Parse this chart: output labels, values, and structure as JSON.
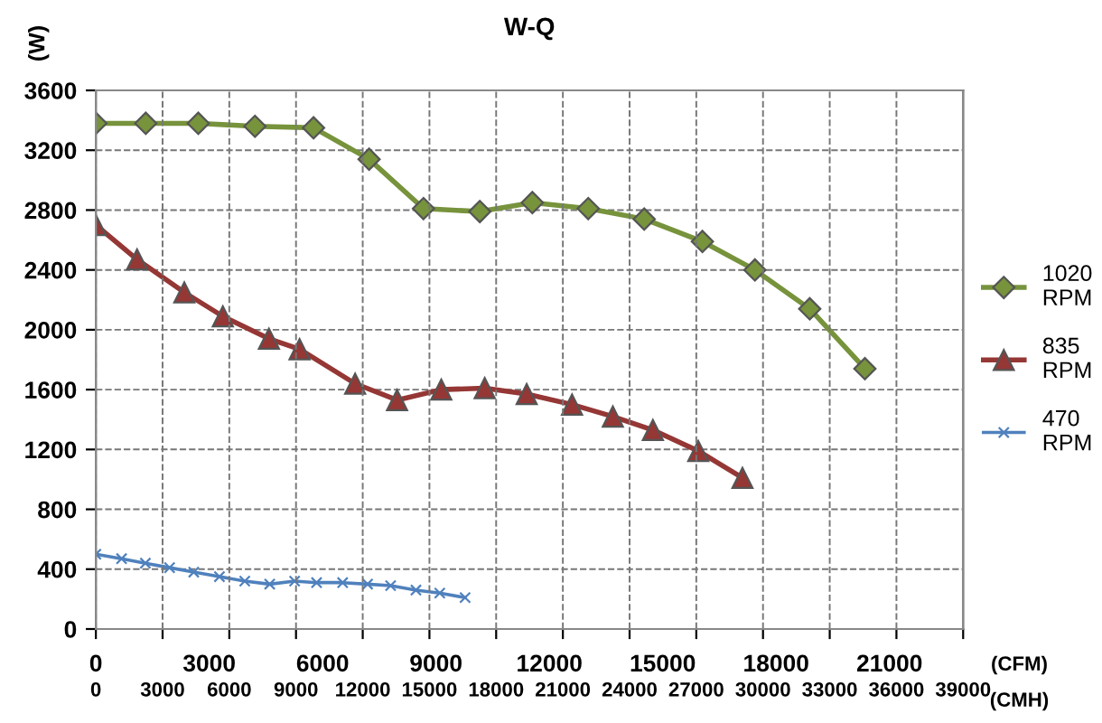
{
  "chart_data": {
    "type": "line",
    "title": "W-Q",
    "ylabel": "(W)",
    "xlabel": "(CFM)",
    "x2label": "(CMH)",
    "xlim": [
      0,
      22950
    ],
    "xticks": [
      0,
      3000,
      6000,
      9000,
      12000,
      15000,
      18000,
      21000
    ],
    "x2lim": [
      0,
      39000
    ],
    "x2ticks": [
      0,
      3000,
      6000,
      9000,
      12000,
      15000,
      18000,
      21000,
      24000,
      27000,
      30000,
      33000,
      36000,
      39000
    ],
    "ylim": [
      0,
      3600
    ],
    "yticks": [
      0,
      400,
      800,
      1200,
      1600,
      2000,
      2400,
      2800,
      3200,
      3600
    ],
    "grid": true,
    "legend": "right",
    "line_style": "solid",
    "series": [
      {
        "name": "1020\nRPM",
        "color": "#77933c",
        "marker": "diamond",
        "x": [
          0,
          1320,
          2710,
          4210,
          5760,
          7230,
          8670,
          10160,
          11550,
          13030,
          14510,
          16050,
          17440,
          18890,
          20350
        ],
        "values": [
          3380,
          3380,
          3380,
          3360,
          3350,
          3140,
          2810,
          2790,
          2850,
          2810,
          2740,
          2590,
          2400,
          2140,
          1740
        ]
      },
      {
        "name": "835\nRPM",
        "color": "#953735",
        "marker": "triangle",
        "x": [
          0,
          1090,
          2340,
          3360,
          4580,
          5390,
          6860,
          7970,
          9140,
          10290,
          11400,
          12600,
          13680,
          14740,
          15940,
          17110
        ],
        "values": [
          2700,
          2470,
          2250,
          2090,
          1940,
          1870,
          1640,
          1530,
          1600,
          1610,
          1570,
          1500,
          1420,
          1330,
          1190,
          1010
        ]
      },
      {
        "name": "470\nRPM",
        "color": "#4f81bd",
        "marker": "cross",
        "x": [
          0,
          680,
          1310,
          1950,
          2590,
          3270,
          3940,
          4600,
          5260,
          5840,
          6530,
          7190,
          7800,
          8470,
          9100,
          9770
        ],
        "values": [
          500,
          470,
          440,
          410,
          380,
          350,
          320,
          300,
          320,
          310,
          310,
          300,
          290,
          260,
          240,
          210
        ]
      }
    ]
  }
}
